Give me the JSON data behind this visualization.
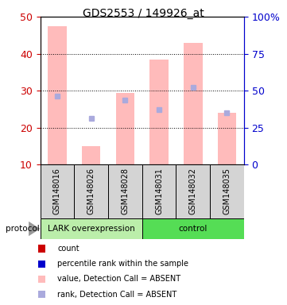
{
  "title": "GDS2553 / 149926_at",
  "samples": [
    "GSM148016",
    "GSM148026",
    "GSM148028",
    "GSM148031",
    "GSM148032",
    "GSM148035"
  ],
  "pink_bar_values": [
    47.5,
    15.0,
    29.5,
    38.5,
    43.0,
    24.0
  ],
  "blue_square_values_left": [
    28.5,
    22.5,
    27.5,
    25.0,
    31.0,
    24.0
  ],
  "pink_bar_bottom": 10,
  "ylim_left": [
    10,
    50
  ],
  "ylim_right": [
    0,
    100
  ],
  "yticks_left": [
    10,
    20,
    30,
    40,
    50
  ],
  "yticks_right": [
    0,
    25,
    50,
    75,
    100
  ],
  "yticklabels_right": [
    "0",
    "25",
    "50",
    "75",
    "100%"
  ],
  "left_tick_color": "#cc0000",
  "right_tick_color": "#0000cc",
  "group0_label": "LARK overexpression",
  "group0_color": "#bbeeaa",
  "group1_label": "control",
  "group1_color": "#55dd55",
  "protocol_label": "protocol",
  "pink_color": "#ffbbbb",
  "blue_color": "#aaaadd",
  "legend_colors": [
    "#cc0000",
    "#0000cc",
    "#ffbbbb",
    "#aaaadd"
  ],
  "legend_labels": [
    "count",
    "percentile rank within the sample",
    "value, Detection Call = ABSENT",
    "rank, Detection Call = ABSENT"
  ],
  "bar_width": 0.55
}
